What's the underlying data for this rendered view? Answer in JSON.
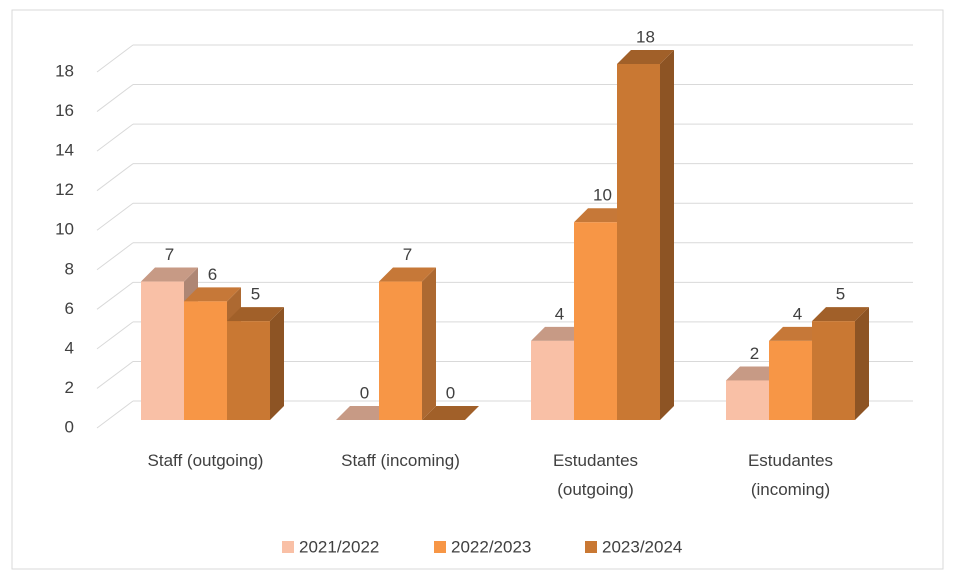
{
  "chart_data": {
    "type": "bar3d",
    "categories": [
      "Staff (outgoing)",
      "Staff (incoming)",
      "Estudantes (outgoing)",
      "Estudantes (incoming)"
    ],
    "series": [
      {
        "name": "2021/2022",
        "color": "#f9c0a6",
        "values": [
          7,
          0,
          4,
          2
        ]
      },
      {
        "name": "2022/2023",
        "color": "#f79646",
        "values": [
          6,
          7,
          10,
          4
        ]
      },
      {
        "name": "2023/2024",
        "color": "#c97833",
        "values": [
          5,
          0,
          18,
          5
        ]
      }
    ],
    "ylim": [
      0,
      18
    ],
    "yticks": [
      0,
      2,
      4,
      6,
      8,
      10,
      12,
      14,
      16,
      18
    ],
    "grid": true,
    "legend": "bottom"
  }
}
